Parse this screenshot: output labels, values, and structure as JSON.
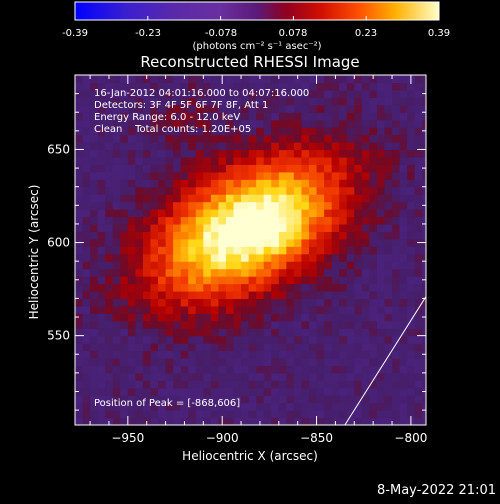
{
  "colorbar": {
    "ticks": [
      "-0.39",
      "-0.23",
      "-0.078",
      "0.078",
      "0.23",
      "0.39"
    ],
    "unit_label": "(photons cm⁻² s⁻¹ asec⁻²)"
  },
  "chart_data": {
    "type": "heatmap",
    "title": "Reconstructed RHESSI Image",
    "xlabel": "Heliocentric X (arcsec)",
    "ylabel": "Heliocentric Y (arcsec)",
    "xlim": [
      -978,
      -792
    ],
    "ylim": [
      502,
      690
    ],
    "x_ticks": [
      -950,
      -900,
      -850,
      -800
    ],
    "x_tick_labels": [
      "−950",
      "−900",
      "−850",
      "−800"
    ],
    "y_ticks": [
      550,
      600,
      650
    ],
    "y_tick_labels": [
      "550",
      "600",
      "650"
    ],
    "colorbar_range": [
      -0.39,
      0.39
    ],
    "source": {
      "peak_x": -868,
      "peak_y": 606,
      "peak_value": 0.39
    },
    "annotations": [
      "16-Jan-2012 04:01:16.000 to 04:07:16.000",
      "Detectors: 3F 4F 5F 6F 7F 8F, Att 1",
      "Energy Range: 6.0 - 12.0 keV",
      "Clean    Total counts: 1.20E+05"
    ],
    "peak_label": "Position of Peak = [-868,606]",
    "limb_line": [
      [
        -835,
        502
      ],
      [
        -792,
        571
      ]
    ]
  },
  "footer": {
    "timestamp": "8-May-2022 21:01"
  }
}
